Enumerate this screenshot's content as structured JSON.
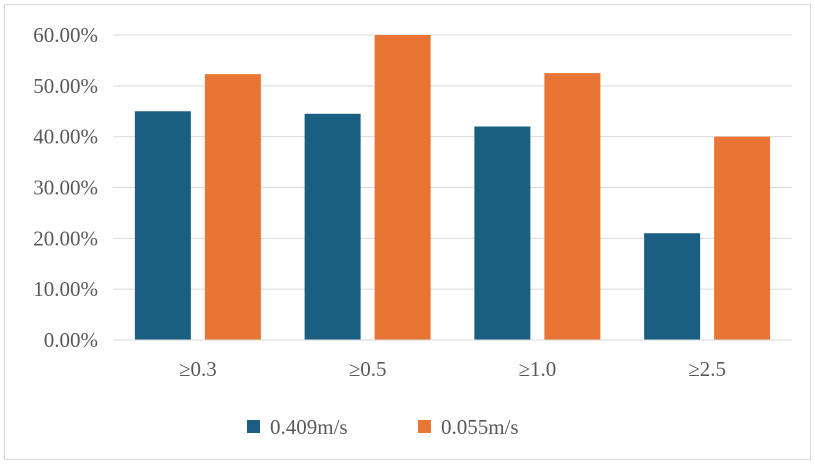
{
  "chart_data": {
    "type": "bar",
    "categories": [
      "≥0.3",
      "≥0.5",
      "≥1.0",
      "≥2.5"
    ],
    "series": [
      {
        "name": "0.409m/s",
        "values": [
          0.45,
          0.445,
          0.42,
          0.21
        ],
        "color": "#1a5e82"
      },
      {
        "name": "0.055m/s",
        "values": [
          0.523,
          0.6,
          0.525,
          0.4
        ],
        "color": "#e87533"
      }
    ],
    "y_ticks": [
      "0.00%",
      "10.00%",
      "20.00%",
      "30.00%",
      "40.00%",
      "50.00%",
      "60.00%"
    ],
    "ylim": [
      0,
      0.6
    ],
    "grid": true,
    "legend_position": "bottom",
    "title": "",
    "xlabel": "",
    "ylabel": ""
  }
}
